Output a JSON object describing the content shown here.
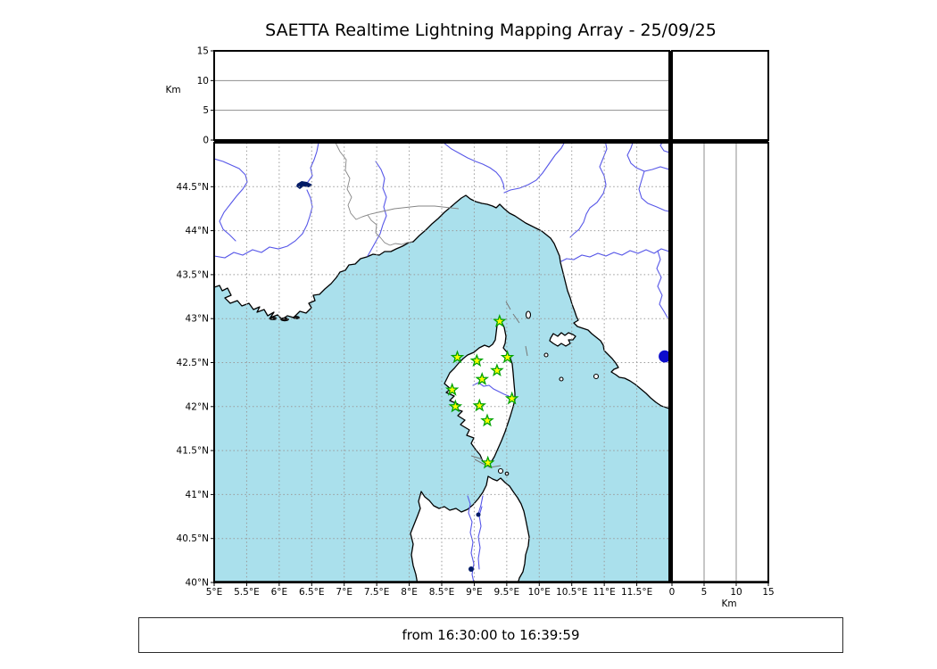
{
  "title": "SAETTA Realtime Lightning Mapping Array - 25/09/25",
  "footer": {
    "time_range": "from 16:30:00 to 16:39:59"
  },
  "colors": {
    "sea": "#aae0ec",
    "river": "#5757e8",
    "lake": "#001a66",
    "station_fill": "#ffff00",
    "station_stroke": "#00a303",
    "event": "#0d0dcc",
    "grid": "#9a9a9a"
  },
  "axes": {
    "altitude_top": {
      "unit_label": "Km",
      "tick_values": [
        0,
        5,
        10,
        15
      ],
      "tick_labels": [
        "0",
        "5",
        "10",
        "15"
      ],
      "max_km": 15,
      "gridlines_km": [
        5,
        10
      ]
    },
    "altitude_right": {
      "unit_label": "Km",
      "tick_values": [
        0,
        5,
        10,
        15
      ],
      "tick_labels": [
        "0",
        "5",
        "10",
        "15"
      ],
      "max_km": 15,
      "gridlines_km": [
        5,
        10
      ]
    },
    "longitude": {
      "tick_values": [
        5,
        5.5,
        6,
        6.5,
        7,
        7.5,
        8,
        8.5,
        9,
        9.5,
        10,
        10.5,
        11,
        11.5
      ],
      "tick_labels": [
        "5°E",
        "5.5°E",
        "6°E",
        "6.5°E",
        "7°E",
        "7.5°E",
        "8°E",
        "8.5°E",
        "9°E",
        "9.5°E",
        "10°E",
        "10.5°E",
        "11°E",
        "11.5°E"
      ]
    },
    "latitude": {
      "tick_values": [
        44.5,
        44,
        43.5,
        43,
        42.5,
        42,
        41.5,
        41,
        40.5,
        40
      ],
      "tick_labels": [
        "44.5°N",
        "44°N",
        "43.5°N",
        "43°N",
        "42.5°N",
        "42°N",
        "41.5°N",
        "41°N",
        "40.5°N",
        "40°N"
      ]
    }
  },
  "chart_data": {
    "type": "scatter",
    "title": "SAETTA Realtime Lightning Mapping Array - 25/09/25",
    "time_window": "from 16:30:00 to 16:39:59",
    "map_extent": {
      "lon_min": 5,
      "lon_max": 12,
      "lat_min": 40,
      "lat_max": 45
    },
    "grid_step_deg": 0.5,
    "altitude_panels_km": {
      "min": 0,
      "max": 15,
      "gridlines_km": [
        5,
        10
      ]
    },
    "stations_lonlat": [
      [
        9.39,
        42.97
      ],
      [
        8.74,
        42.56
      ],
      [
        9.04,
        42.52
      ],
      [
        9.51,
        42.56
      ],
      [
        9.35,
        42.41
      ],
      [
        9.12,
        42.31
      ],
      [
        8.66,
        42.19
      ],
      [
        9.58,
        42.09
      ],
      [
        8.71,
        42.0
      ],
      [
        9.08,
        42.01
      ],
      [
        9.2,
        41.84
      ],
      [
        9.21,
        41.36
      ]
    ],
    "station_marker": {
      "shape": "star",
      "fill": "#ffff00",
      "stroke": "#00a303"
    },
    "events": [
      {
        "lon": 11.93,
        "lat": 42.57,
        "marker": "circle",
        "color": "#0d0dcc"
      }
    ]
  }
}
